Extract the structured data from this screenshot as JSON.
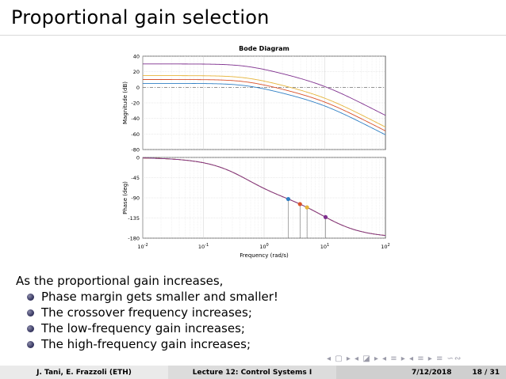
{
  "slide": {
    "title": "Proportional gain selection",
    "intro": "As the proportional gain increases,",
    "bullets": [
      "Phase margin gets smaller and smaller!",
      "The crossover frequency increases;",
      "The low-frequency gain increases;",
      "The high-frequency gain increases;"
    ],
    "nav_symbols": "◂ ▢ ▸ ◂ ◪ ▸ ◂ ≡ ▸ ◂ ≡ ▸ ≡ ∽∾"
  },
  "footer": {
    "authors": "J. Tani, E. Frazzoli (ETH)",
    "lecture": "Lecture 12: Control Systems I",
    "date": "7/12/2018",
    "page": "18 / 31"
  },
  "chart_data": {
    "type": "line",
    "title": "Bode Diagram",
    "xlabel": "Frequency  (rad/s)",
    "xscale": "log",
    "xlim": [
      0.01,
      100
    ],
    "x_ticks": [
      0.01,
      0.1,
      1,
      10,
      100
    ],
    "x_tick_labels": [
      [
        "10",
        "-2"
      ],
      [
        "10",
        "-1"
      ],
      [
        "10",
        "0"
      ],
      [
        "10",
        "1"
      ],
      [
        "10",
        "2"
      ]
    ],
    "magnitude": {
      "ylabel": "Magnitude (dB)",
      "ylim": [
        -80,
        40
      ],
      "y_ticks": [
        40,
        20,
        0,
        -20,
        -40,
        -60,
        -80
      ],
      "reference_line_db": 0
    },
    "phase": {
      "ylabel": "Phase (deg)",
      "ylim": [
        -180,
        0
      ],
      "y_ticks": [
        0,
        -45,
        -90,
        -135,
        -180
      ]
    },
    "grid": true,
    "model": {
      "poles_rad_s": [
        0.5,
        10
      ]
    },
    "series": [
      {
        "gain_db": 5,
        "color": "#2f7fc4",
        "crossover_rad_s": 2.5,
        "phase_margin_deg": 68
      },
      {
        "gain_db": 10,
        "color": "#d9522b",
        "crossover_rad_s": 3.9,
        "phase_margin_deg": 43
      },
      {
        "gain_db": 15,
        "color": "#e6b43a",
        "crossover_rad_s": 5.1,
        "phase_margin_deg": 32
      },
      {
        "gain_db": 30,
        "color": "#7e2f8e",
        "crossover_rad_s": 10.3,
        "phase_margin_deg": 10
      }
    ]
  }
}
